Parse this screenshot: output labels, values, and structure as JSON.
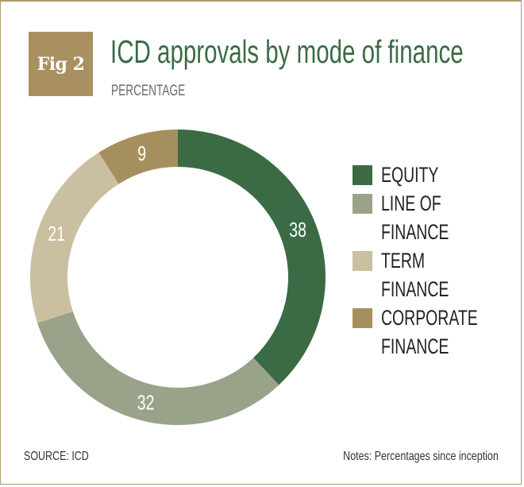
{
  "badge": "Fig 2",
  "title": "ICD approvals by mode of finance",
  "subtitle": "PERCENTAGE",
  "source": "SOURCE: ICD",
  "notes": "Notes: Percentages since inception",
  "chart_data": {
    "type": "pie",
    "variant": "donut",
    "title": "ICD approvals by mode of finance",
    "subtitle": "PERCENTAGE",
    "categories": [
      "EQUITY",
      "LINE OF FINANCE",
      "TERM FINANCE",
      "CORPORATE FINANCE"
    ],
    "values": [
      38,
      32,
      21,
      9
    ],
    "colors": [
      "#3a6b45",
      "#98a38a",
      "#cbbfa2",
      "#a68f5e"
    ],
    "start": "12 o'clock, clockwise",
    "legend": "right"
  }
}
